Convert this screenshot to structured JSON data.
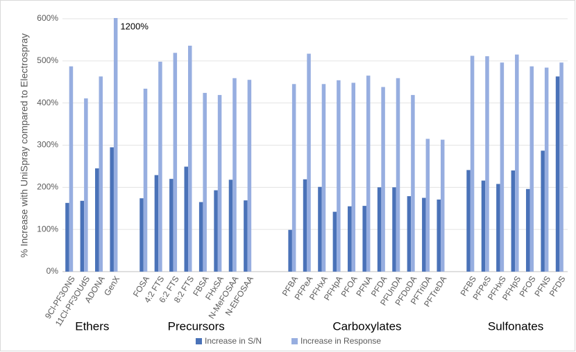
{
  "chart_data": {
    "type": "bar",
    "y_label": "% Increase with UniSpray compared to Electrospray",
    "categories": [
      "9Cl-PF3ONS",
      "11Cl-PF3OUdS",
      "ADONA",
      "GenX",
      null,
      "FOSA",
      "4:2 FTS",
      "6:2 FTS",
      "8:2 FTS",
      "FBSA",
      "FHxSA",
      "N-MeFOSAA",
      "N-EtFOSAA",
      null,
      null,
      "PFBA",
      "PFPeA",
      "PFHxA",
      "PFHpA",
      "PFOA",
      "PFNA",
      "PFDA",
      "PFUnDA",
      "PFDoDA",
      "PFTriDA",
      "PFTreDA",
      null,
      "PFBS",
      "PFPeS",
      "PFHxS",
      "PFHpS",
      "PFOS",
      "PFNS",
      "PFDS"
    ],
    "group_labels": [
      "Ethers",
      "Precursors",
      "Carboxylates",
      "Sulfonates"
    ],
    "series": [
      {
        "name": "Increase in S/N",
        "color": "#4a72b8",
        "values": [
          163,
          168,
          245,
          295,
          null,
          174,
          229,
          220,
          249,
          165,
          193,
          218,
          169,
          null,
          null,
          99,
          219,
          201,
          142,
          155,
          156,
          200,
          200,
          179,
          175,
          171,
          null,
          241,
          216,
          208,
          240,
          196,
          287,
          463
        ]
      },
      {
        "name": "Increase in Response",
        "color": "#97aee0",
        "values": [
          487,
          411,
          463,
          1200,
          null,
          434,
          498,
          519,
          536,
          424,
          419,
          459,
          455,
          null,
          null,
          445,
          517,
          445,
          454,
          448,
          465,
          438,
          459,
          419,
          315,
          313,
          null,
          512,
          511,
          496,
          515,
          487,
          484,
          496
        ],
        "value_labels": [
          null,
          null,
          null,
          "1200%",
          null,
          null,
          null,
          null,
          null,
          null,
          null,
          null,
          null,
          null,
          null,
          null,
          null,
          null,
          null,
          null,
          null,
          null,
          null,
          null,
          null,
          null,
          null,
          null,
          null,
          null,
          null,
          null,
          null,
          null
        ]
      }
    ],
    "ylim": [
      0,
      600
    ],
    "yticks": [
      {
        "value": 0,
        "label": "0%"
      },
      {
        "value": 100,
        "label": "100%"
      },
      {
        "value": 200,
        "label": "200%"
      },
      {
        "value": 300,
        "label": "300%"
      },
      {
        "value": 400,
        "label": "400%"
      },
      {
        "value": 500,
        "label": "500%"
      },
      {
        "value": 600,
        "label": "600%"
      }
    ],
    "grid": true
  }
}
